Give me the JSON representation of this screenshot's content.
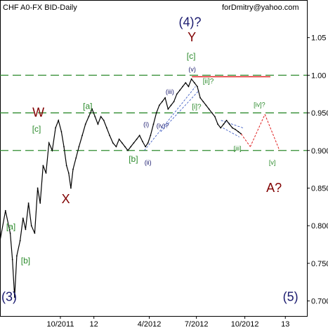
{
  "header": {
    "title": "CHF A0-FX BID-Daily",
    "email": "forDmitry@yahoo.com"
  },
  "colors": {
    "background": "#ffffff",
    "price": "#000000",
    "level_lines": "#2e8b2e",
    "resistance": "#e02020",
    "forecast": "#e02020",
    "minor_channel": "#3050c0",
    "green_labels": "#2a8a2a",
    "dark_red_labels": "#800000",
    "navy_labels": "#1a1a6e"
  },
  "chart_data": {
    "type": "line",
    "title": "CHF A0-FX BID-Daily",
    "xlabel": "",
    "ylabel": "",
    "ylim": [
      0.68,
      1.1
    ],
    "grid": false,
    "y_ticks": [
      "1.05",
      "1.00",
      "0.950",
      "0.900",
      "0.850",
      "0.800",
      "0.750",
      "0.700"
    ],
    "x_ticks": [
      "10/2011",
      "12",
      "4/2012",
      "7/2012",
      "10/2012",
      "13"
    ],
    "level_lines": [
      1.0,
      0.95,
      0.9
    ],
    "resistance_line": 0.998,
    "series": [
      {
        "values": [
          [
            0.0,
            0.78
          ],
          [
            1.5,
            0.82
          ],
          [
            2.8,
            0.79
          ],
          [
            3.4,
            0.755
          ],
          [
            4.0,
            0.705
          ],
          [
            4.6,
            0.76
          ],
          [
            5.5,
            0.78
          ],
          [
            6.3,
            0.81
          ],
          [
            7.0,
            0.795
          ],
          [
            7.8,
            0.83
          ],
          [
            8.6,
            0.8
          ],
          [
            9.5,
            0.79
          ],
          [
            10.3,
            0.85
          ],
          [
            11.0,
            0.83
          ],
          [
            11.8,
            0.88
          ],
          [
            12.6,
            0.87
          ],
          [
            13.4,
            0.91
          ],
          [
            14.3,
            0.9
          ],
          [
            15.2,
            0.93
          ],
          [
            16.0,
            0.94
          ],
          [
            16.8,
            0.925
          ],
          [
            17.5,
            0.905
          ],
          [
            18.2,
            0.88
          ],
          [
            18.8,
            0.87
          ],
          [
            19.4,
            0.85
          ],
          [
            20.0,
            0.875
          ],
          [
            20.8,
            0.89
          ],
          [
            21.6,
            0.905
          ],
          [
            22.5,
            0.92
          ],
          [
            23.4,
            0.935
          ],
          [
            24.3,
            0.945
          ],
          [
            25.2,
            0.955
          ],
          [
            26.0,
            0.945
          ],
          [
            26.8,
            0.935
          ],
          [
            27.6,
            0.945
          ],
          [
            28.4,
            0.94
          ],
          [
            29.2,
            0.93
          ],
          [
            30.0,
            0.92
          ],
          [
            30.9,
            0.91
          ],
          [
            31.8,
            0.905
          ],
          [
            32.6,
            0.915
          ],
          [
            33.4,
            0.91
          ],
          [
            34.2,
            0.905
          ],
          [
            35.0,
            0.9
          ],
          [
            35.8,
            0.905
          ],
          [
            36.6,
            0.91
          ],
          [
            37.4,
            0.915
          ],
          [
            38.2,
            0.92
          ],
          [
            39.0,
            0.912
          ],
          [
            39.8,
            0.905
          ],
          [
            40.5,
            0.91
          ],
          [
            41.2,
            0.92
          ],
          [
            42.0,
            0.935
          ],
          [
            42.8,
            0.95
          ],
          [
            43.6,
            0.96
          ],
          [
            44.4,
            0.965
          ],
          [
            45.2,
            0.97
          ],
          [
            46.0,
            0.955
          ],
          [
            46.8,
            0.96
          ],
          [
            47.6,
            0.965
          ],
          [
            48.4,
            0.975
          ],
          [
            49.2,
            0.98
          ],
          [
            50.0,
            0.985
          ],
          [
            50.8,
            0.99
          ],
          [
            51.6,
            0.985
          ],
          [
            52.4,
            0.995
          ],
          [
            53.2,
            0.99
          ],
          [
            54.0,
            0.985
          ],
          [
            54.8,
            0.97
          ],
          [
            55.6,
            0.965
          ],
          [
            56.4,
            0.96
          ],
          [
            57.2,
            0.955
          ],
          [
            58.0,
            0.95
          ],
          [
            58.8,
            0.945
          ],
          [
            59.6,
            0.935
          ],
          [
            60.4,
            0.93
          ],
          [
            61.2,
            0.935
          ],
          [
            62.0,
            0.94
          ],
          [
            62.8,
            0.935
          ],
          [
            63.6,
            0.93
          ],
          [
            64.4,
            0.928
          ],
          [
            65.2,
            0.925
          ],
          [
            66.0,
            0.922
          ]
        ]
      }
    ],
    "forecast": [
      {
        "from": [
          66.0,
          0.922
        ],
        "to": [
          68.5,
          0.905
        ]
      },
      {
        "from": [
          68.5,
          0.905
        ],
        "to": [
          72.5,
          0.948
        ]
      },
      {
        "from": [
          72.5,
          0.948
        ],
        "to": [
          76.5,
          0.9
        ]
      }
    ],
    "channel_lines": [
      {
        "from": [
          39.5,
          0.9
        ],
        "to": [
          53.5,
          0.985
        ]
      },
      {
        "from": [
          44.0,
          0.925
        ],
        "to": [
          54.5,
          0.98
        ]
      },
      {
        "from": [
          60.5,
          0.94
        ],
        "to": [
          66.5,
          0.93
        ]
      },
      {
        "from": [
          61.0,
          0.93
        ],
        "to": [
          65.5,
          0.918
        ]
      }
    ],
    "wave_labels": [
      {
        "text": "(4)?",
        "x": 52.0,
        "y": 1.065,
        "color": "navy",
        "size": 18
      },
      {
        "text": "Y",
        "x": 52.5,
        "y": 1.045,
        "color": "darkred",
        "size": 18
      },
      {
        "text": "[c]",
        "x": 52.3,
        "y": 1.022,
        "color": "green",
        "size": 12
      },
      {
        "text": "(v)",
        "x": 52.6,
        "y": 1.005,
        "color": "navy",
        "size": 9
      },
      {
        "text": "(iii)",
        "x": 46.5,
        "y": 0.975,
        "color": "navy",
        "size": 9
      },
      {
        "text": "[ii]?",
        "x": 57.0,
        "y": 0.989,
        "color": "green",
        "size": 10
      },
      {
        "text": "[i]?",
        "x": 53.8,
        "y": 0.955,
        "color": "green",
        "size": 10
      },
      {
        "text": "(i)",
        "x": 40.0,
        "y": 0.932,
        "color": "navy",
        "size": 9
      },
      {
        "text": "(iv)?",
        "x": 44.5,
        "y": 0.93,
        "color": "navy",
        "size": 9
      },
      {
        "text": "(ii)",
        "x": 40.5,
        "y": 0.881,
        "color": "navy",
        "size": 9
      },
      {
        "text": "[b]",
        "x": 36.5,
        "y": 0.885,
        "color": "green",
        "size": 12
      },
      {
        "text": "[a]",
        "x": 24.0,
        "y": 0.955,
        "color": "green",
        "size": 12
      },
      {
        "text": "W",
        "x": 10.5,
        "y": 0.945,
        "color": "darkred",
        "size": 18
      },
      {
        "text": "[c]",
        "x": 10.0,
        "y": 0.925,
        "color": "green",
        "size": 12
      },
      {
        "text": "X",
        "x": 18.0,
        "y": 0.83,
        "color": "darkred",
        "size": 18
      },
      {
        "text": "[a]",
        "x": 3.0,
        "y": 0.795,
        "color": "green",
        "size": 12
      },
      {
        "text": "[b]",
        "x": 7.0,
        "y": 0.75,
        "color": "green",
        "size": 12
      },
      {
        "text": "(3)",
        "x": 2.5,
        "y": 0.7,
        "color": "navy",
        "size": 18
      },
      {
        "text": "[iii]",
        "x": 65.0,
        "y": 0.9,
        "color": "green",
        "size": 9
      },
      {
        "text": "[iv]?",
        "x": 71.0,
        "y": 0.958,
        "color": "green",
        "size": 9
      },
      {
        "text": "[v]",
        "x": 74.5,
        "y": 0.881,
        "color": "green",
        "size": 9
      },
      {
        "text": "A?",
        "x": 75.0,
        "y": 0.845,
        "color": "darkred",
        "size": 18
      },
      {
        "text": "(5)",
        "x": 79.5,
        "y": 0.7,
        "color": "navy",
        "size": 18
      }
    ],
    "x_range": [
      0,
      84
    ]
  }
}
